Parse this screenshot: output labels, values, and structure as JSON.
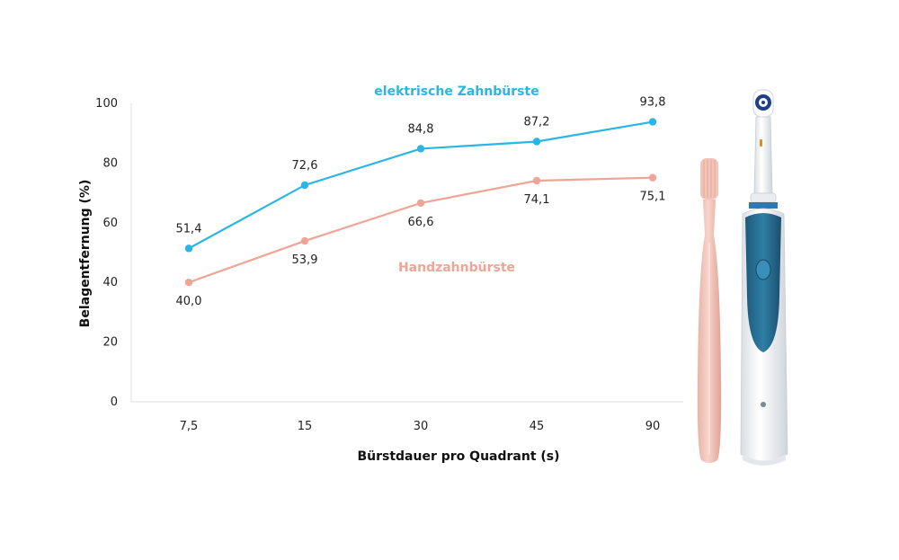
{
  "chart_data": {
    "type": "line",
    "categories": [
      "7,5",
      "15",
      "30",
      "45",
      "90"
    ],
    "xlabel": "Bürstdauer pro Quadrant (s)",
    "ylabel": "Belagentfernung (%)",
    "ylim": [
      0,
      100
    ],
    "yticks": [
      0,
      20,
      40,
      60,
      80,
      100
    ],
    "grid": false,
    "series": [
      {
        "name": "elektrische Zahnbürste",
        "color": "#29b6e6",
        "values": [
          51.4,
          72.6,
          84.8,
          87.2,
          93.8
        ],
        "labels": [
          "51,4",
          "72,6",
          "84,8",
          "87,2",
          "93,8"
        ]
      },
      {
        "name": "Handzahnbürste",
        "color": "#eea595",
        "values": [
          40.0,
          53.9,
          66.6,
          74.1,
          75.1
        ],
        "labels": [
          "40,0",
          "53,9",
          "66,6",
          "74,1",
          "75,1"
        ]
      }
    ]
  },
  "illustrations": [
    "manual-toothbrush",
    "electric-toothbrush"
  ]
}
